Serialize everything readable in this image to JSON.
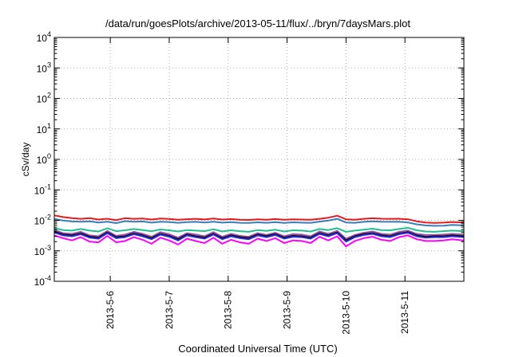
{
  "chart_data": {
    "type": "line",
    "title": "/data/run/goesPlots/archive/2013-05-11/flux/../bryn/7daysMars.plot",
    "xlabel": "Coordinated Universal Time (UTC)",
    "ylabel": "cSv/day",
    "yscale": "log",
    "ylim": [
      0.0001,
      10000
    ],
    "xlim": [
      5.05,
      12.0
    ],
    "grid": true,
    "legend": "none",
    "y_ticks": [
      {
        "base": "10",
        "exp": "-4",
        "value": 0.0001
      },
      {
        "base": "10",
        "exp": "-3",
        "value": 0.001
      },
      {
        "base": "10",
        "exp": "-2",
        "value": 0.01
      },
      {
        "base": "10",
        "exp": "-1",
        "value": 0.1
      },
      {
        "base": "10",
        "exp": "0",
        "value": 1
      },
      {
        "base": "10",
        "exp": "1",
        "value": 10
      },
      {
        "base": "10",
        "exp": "2",
        "value": 100
      },
      {
        "base": "10",
        "exp": "3",
        "value": 1000
      },
      {
        "base": "10",
        "exp": "4",
        "value": 10000
      }
    ],
    "x_ticks": [
      {
        "label": "2013-5-6",
        "value": 6
      },
      {
        "label": "2013-5-7",
        "value": 7
      },
      {
        "label": "2013-5-8",
        "value": 8
      },
      {
        "label": "2013-5-9",
        "value": 9
      },
      {
        "label": "2013-5-10",
        "value": 10
      },
      {
        "label": "2013-5-11",
        "value": 11
      }
    ],
    "x": [
      5.05,
      5.2,
      5.35,
      5.5,
      5.65,
      5.8,
      5.95,
      6.1,
      6.25,
      6.4,
      6.55,
      6.7,
      6.85,
      7.0,
      7.15,
      7.3,
      7.45,
      7.6,
      7.75,
      7.9,
      8.05,
      8.2,
      8.35,
      8.5,
      8.65,
      8.8,
      8.95,
      9.1,
      9.25,
      9.4,
      9.55,
      9.7,
      9.85,
      10.0,
      10.15,
      10.3,
      10.45,
      10.6,
      10.75,
      10.9,
      11.05,
      11.2,
      11.35,
      11.5,
      11.65,
      11.8,
      12.0
    ],
    "series": [
      {
        "color": "#e41a1c",
        "values": [
          0.0145,
          0.0128,
          0.0118,
          0.0112,
          0.0118,
          0.0106,
          0.0113,
          0.0102,
          0.0118,
          0.0112,
          0.0115,
          0.0106,
          0.0114,
          0.0111,
          0.0104,
          0.0109,
          0.0112,
          0.0107,
          0.0114,
          0.0106,
          0.011,
          0.0105,
          0.0103,
          0.0108,
          0.0104,
          0.011,
          0.0104,
          0.0108,
          0.0106,
          0.0104,
          0.0112,
          0.0122,
          0.0142,
          0.0108,
          0.0105,
          0.0112,
          0.0117,
          0.0113,
          0.0112,
          0.0113,
          0.0108,
          0.0093,
          0.0085,
          0.0082,
          0.0084,
          0.0088,
          0.0085
        ]
      },
      {
        "color": "#377eb8",
        "values": [
          0.0112,
          0.0098,
          0.0092,
          0.009,
          0.0093,
          0.0085,
          0.009,
          0.0081,
          0.0094,
          0.009,
          0.0092,
          0.0084,
          0.009,
          0.0088,
          0.0083,
          0.0087,
          0.0089,
          0.0085,
          0.009,
          0.0084,
          0.0087,
          0.0083,
          0.0082,
          0.0086,
          0.0083,
          0.0087,
          0.0082,
          0.0086,
          0.0084,
          0.0083,
          0.0091,
          0.0098,
          0.0112,
          0.0085,
          0.0083,
          0.0089,
          0.0093,
          0.009,
          0.0089,
          0.009,
          0.0085,
          0.0074,
          0.0068,
          0.0066,
          0.0067,
          0.0071,
          0.0068
        ]
      },
      {
        "color": "#1fbf8f",
        "values": [
          0.0055,
          0.0048,
          0.0046,
          0.0052,
          0.0046,
          0.0043,
          0.0055,
          0.0044,
          0.0047,
          0.0052,
          0.0048,
          0.0044,
          0.005,
          0.0047,
          0.0043,
          0.0048,
          0.0046,
          0.0044,
          0.0051,
          0.0043,
          0.0047,
          0.0044,
          0.0042,
          0.0048,
          0.0045,
          0.0049,
          0.0043,
          0.0047,
          0.0046,
          0.0043,
          0.0052,
          0.0048,
          0.0055,
          0.0042,
          0.0046,
          0.0049,
          0.0053,
          0.0048,
          0.0047,
          0.0052,
          0.0057,
          0.0047,
          0.0043,
          0.0042,
          0.0044,
          0.0046,
          0.0044
        ]
      },
      {
        "color": "#984ea3",
        "values": [
          0.0048,
          0.0038,
          0.0036,
          0.0042,
          0.0032,
          0.003,
          0.0045,
          0.0031,
          0.0034,
          0.0042,
          0.0036,
          0.0029,
          0.0041,
          0.0035,
          0.0027,
          0.0038,
          0.0034,
          0.003,
          0.0041,
          0.0029,
          0.0036,
          0.0031,
          0.0029,
          0.0038,
          0.0033,
          0.0039,
          0.003,
          0.0035,
          0.0034,
          0.003,
          0.0043,
          0.0036,
          0.0045,
          0.0025,
          0.0033,
          0.0039,
          0.0043,
          0.0036,
          0.0034,
          0.0042,
          0.0046,
          0.0036,
          0.0033,
          0.0033,
          0.0034,
          0.0036,
          0.0034
        ]
      },
      {
        "color": "#000000",
        "values": [
          0.0043,
          0.0034,
          0.0032,
          0.0037,
          0.0029,
          0.0027,
          0.004,
          0.0028,
          0.003,
          0.0037,
          0.0032,
          0.0026,
          0.0036,
          0.0031,
          0.0024,
          0.0034,
          0.003,
          0.0027,
          0.0036,
          0.0026,
          0.0032,
          0.0028,
          0.0026,
          0.0034,
          0.003,
          0.0035,
          0.0027,
          0.0031,
          0.003,
          0.0027,
          0.0038,
          0.0032,
          0.004,
          0.0022,
          0.003,
          0.0035,
          0.0038,
          0.0032,
          0.003,
          0.0037,
          0.0041,
          0.0032,
          0.0029,
          0.003,
          0.003,
          0.0032,
          0.003
        ]
      },
      {
        "color": "#2b2bd9",
        "values": [
          0.004,
          0.0032,
          0.003,
          0.0035,
          0.0027,
          0.0025,
          0.0038,
          0.0026,
          0.0028,
          0.0035,
          0.003,
          0.0024,
          0.0034,
          0.0029,
          0.0022,
          0.0032,
          0.0028,
          0.0025,
          0.0034,
          0.0024,
          0.003,
          0.0026,
          0.0024,
          0.0032,
          0.0028,
          0.0033,
          0.0025,
          0.0029,
          0.0028,
          0.0025,
          0.0036,
          0.003,
          0.0038,
          0.002,
          0.0028,
          0.0033,
          0.0036,
          0.003,
          0.0028,
          0.0035,
          0.0039,
          0.003,
          0.0027,
          0.0028,
          0.0028,
          0.003,
          0.0028
        ]
      },
      {
        "color": "#ff00ff",
        "values": [
          0.0032,
          0.0026,
          0.0022,
          0.0028,
          0.002,
          0.0019,
          0.0031,
          0.0019,
          0.0021,
          0.0028,
          0.0023,
          0.0017,
          0.0027,
          0.0022,
          0.0016,
          0.0025,
          0.0021,
          0.0018,
          0.0027,
          0.0017,
          0.0023,
          0.0019,
          0.0017,
          0.0025,
          0.0021,
          0.0026,
          0.0018,
          0.0022,
          0.0021,
          0.0018,
          0.0029,
          0.0022,
          0.003,
          0.0014,
          0.0021,
          0.0026,
          0.0029,
          0.0023,
          0.0021,
          0.0028,
          0.0032,
          0.0024,
          0.0021,
          0.0021,
          0.0022,
          0.0024,
          0.0022
        ]
      }
    ]
  }
}
